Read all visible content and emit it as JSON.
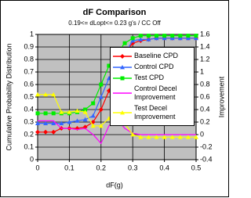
{
  "chart_data": {
    "type": "line",
    "title": "dF Comparison",
    "subtitle": "0.19<= dLopt<= 0.23 g's / CC Off",
    "x_label": "dF(g)",
    "y_label": "Cumulative Probability Distribution",
    "y2_label": "Improvement",
    "x": [
      0,
      0.025,
      0.05,
      0.075,
      0.1,
      0.125,
      0.15,
      0.175,
      0.2,
      0.225,
      0.25,
      0.275,
      0.3,
      0.325,
      0.35,
      0.375,
      0.4,
      0.425,
      0.45,
      0.475,
      0.5
    ],
    "xlim": [
      0,
      0.5
    ],
    "xticks": [
      0,
      0.1,
      0.2,
      0.3,
      0.4,
      0.5
    ],
    "ylim": [
      0,
      1
    ],
    "yticks": [
      0,
      0.1,
      0.2,
      0.3,
      0.4,
      0.5,
      0.6,
      0.7,
      0.8,
      0.9,
      1
    ],
    "y2lim": [
      -0.4,
      1.6
    ],
    "y2ticks": [
      -0.4,
      -0.2,
      0,
      0.2,
      0.4,
      0.6,
      0.8,
      1,
      1.2,
      1.4,
      1.6
    ],
    "grid": true,
    "plot_background": "#c0c0c0",
    "series": [
      {
        "name": "Baseline CPD",
        "color": "#ff0000",
        "marker": "diamond",
        "values": [
          0.22,
          0.22,
          0.22,
          0.25,
          0.25,
          0.25,
          0.26,
          0.3,
          0.4,
          0.55,
          0.7,
          0.85,
          0.93,
          0.95,
          0.96,
          0.97,
          0.97,
          0.97,
          0.97,
          0.97,
          0.97
        ]
      },
      {
        "name": "Control CPD",
        "color": "#3366ff",
        "marker": "triangle",
        "values": [
          0.29,
          0.29,
          0.29,
          0.29,
          0.3,
          0.31,
          0.32,
          0.35,
          0.5,
          0.65,
          0.75,
          0.85,
          0.95,
          0.96,
          0.96,
          0.97,
          0.97,
          0.97,
          0.97,
          0.97,
          0.97
        ]
      },
      {
        "name": "Test CPD",
        "color": "#00ee00",
        "marker": "square",
        "values": [
          0.37,
          0.37,
          0.37,
          0.37,
          0.37,
          0.38,
          0.4,
          0.45,
          0.6,
          0.75,
          0.85,
          0.93,
          0.97,
          0.99,
          0.99,
          0.99,
          0.99,
          0.99,
          0.99,
          0.99,
          0.99
        ]
      },
      {
        "name": "Control Decel Improvement",
        "color": "#ff00ff",
        "marker": "none",
        "axis": "y2",
        "values": [
          0.22,
          0.22,
          0.22,
          0.1,
          0.1,
          0.08,
          0.1,
          0.0,
          -0.14,
          0.14,
          0.25,
          0.1,
          0.02,
          0,
          0,
          0,
          0,
          0,
          0,
          0,
          0
        ]
      },
      {
        "name": "Test Decel Improvement",
        "color": "#ffff00",
        "marker": "triangle",
        "axis": "y2",
        "values": [
          0.64,
          0.64,
          0.64,
          0.36,
          0.36,
          0.38,
          0.36,
          0.14,
          0.14,
          0.26,
          0.35,
          0.18,
          0.0,
          -0.04,
          -0.04,
          -0.04,
          -0.04,
          -0.04,
          -0.04,
          -0.04,
          -0.04
        ]
      }
    ]
  }
}
